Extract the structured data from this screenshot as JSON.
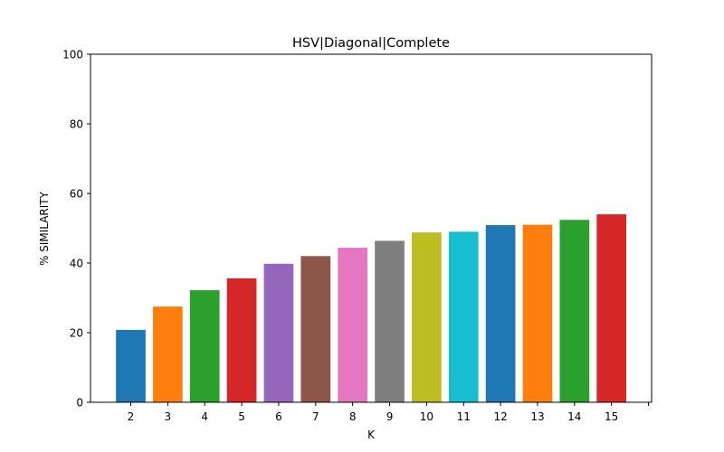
{
  "chart_data": {
    "type": "bar",
    "title": "HSV|Diagonal|Complete",
    "xlabel": "K",
    "ylabel": "% SIMILARITY",
    "categories": [
      "2",
      "3",
      "4",
      "5",
      "6",
      "7",
      "8",
      "9",
      "10",
      "11",
      "12",
      "13",
      "14",
      "15"
    ],
    "values": [
      20.8,
      27.5,
      32.2,
      35.6,
      39.8,
      42.0,
      44.4,
      46.4,
      48.8,
      49.0,
      50.9,
      51.0,
      52.4,
      54.0
    ],
    "colors": [
      "#1f77b4",
      "#ff7f0e",
      "#2ca02c",
      "#d62728",
      "#9467bd",
      "#8c564b",
      "#e377c2",
      "#7f7f7f",
      "#bcbd22",
      "#17becf",
      "#1f77b4",
      "#ff7f0e",
      "#2ca02c",
      "#d62728"
    ],
    "ylim": [
      0,
      100
    ],
    "yticks": [
      "0",
      "20",
      "40",
      "60",
      "80",
      "100"
    ],
    "grid": false,
    "legend": "none"
  }
}
